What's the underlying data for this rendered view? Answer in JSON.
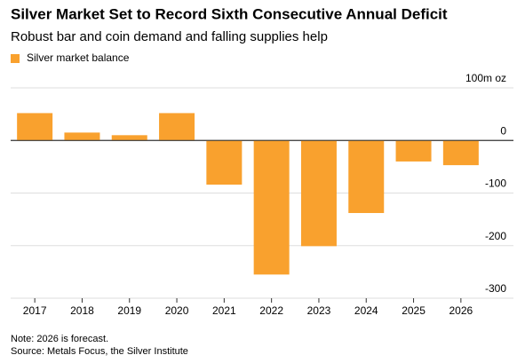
{
  "chart_data": {
    "type": "bar",
    "title": "Silver Market Set to Record Sixth Consecutive Annual Deficit",
    "subtitle": "Robust bar and coin demand and falling supplies help",
    "categories": [
      "2017",
      "2018",
      "2019",
      "2020",
      "2021",
      "2022",
      "2023",
      "2024",
      "2025",
      "2026"
    ],
    "series": [
      {
        "name": "Silver market balance",
        "color": "#f9a12e",
        "values": [
          52,
          15,
          10,
          52,
          -84,
          -255,
          -201,
          -138,
          -40,
          -47
        ]
      }
    ],
    "ylim": [
      -300,
      100
    ],
    "yticks": [
      {
        "value": 100,
        "label": "100m oz"
      },
      0,
      -100,
      -200,
      -300
    ],
    "grid": true,
    "note": "Note: 2026 is forecast.",
    "source": "Source: Metals Focus, the Silver Institute"
  }
}
